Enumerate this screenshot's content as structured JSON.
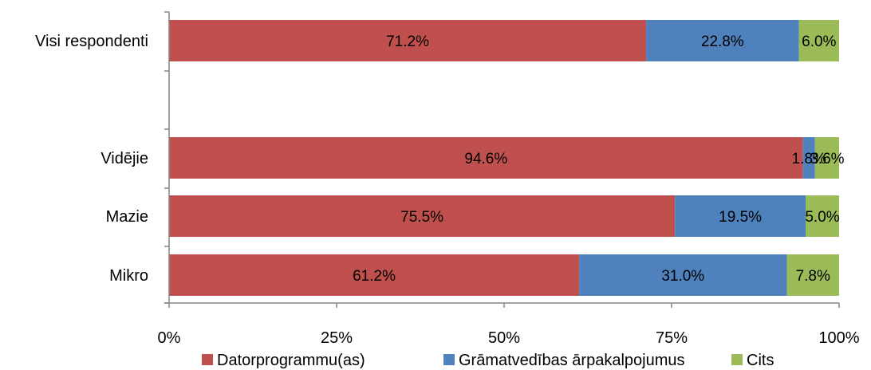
{
  "chart_data": {
    "type": "bar",
    "orientation": "horizontal",
    "stacked": true,
    "title": "",
    "xlabel": "",
    "ylabel": "",
    "xlim": [
      0,
      100
    ],
    "x_ticks": [
      "0%",
      "25%",
      "50%",
      "75%",
      "100%"
    ],
    "grid": false,
    "legend_position": "bottom",
    "categories": [
      "Visi respondenti",
      "Vidējie",
      "Mazie",
      "Mikro"
    ],
    "series": [
      {
        "name": "Datorprogrammu(as)",
        "color": "#C0504D",
        "values": [
          71.2,
          94.6,
          75.5,
          61.2
        ],
        "labels": [
          "71.2%",
          "94.6%",
          "75.5%",
          "61.2%"
        ]
      },
      {
        "name": "Grāmatvedības ārpakalpojumus",
        "color": "#4F81BD",
        "values": [
          22.8,
          1.8,
          19.5,
          31.0
        ],
        "labels": [
          "22.8%",
          "1.8%",
          "19.5%",
          "31.0%"
        ]
      },
      {
        "name": "Cits",
        "color": "#9BBB59",
        "values": [
          6.0,
          3.6,
          5.0,
          7.8
        ],
        "labels": [
          "6.0%",
          "3.6%",
          "5.0%",
          "7.8%"
        ]
      }
    ]
  }
}
